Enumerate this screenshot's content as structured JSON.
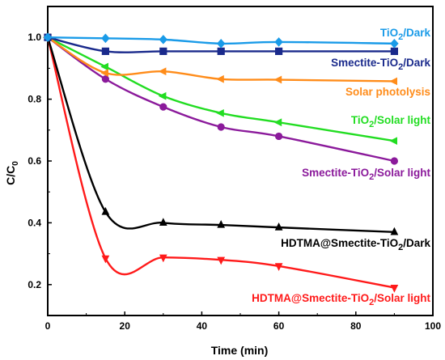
{
  "chart_data": {
    "type": "line",
    "xlabel": "Time (min)",
    "ylabel": {
      "main": "C/C",
      "sub": "0"
    },
    "xlim": [
      0,
      100
    ],
    "ylim": [
      0.1,
      1.1
    ],
    "x_ticks": [
      0,
      20,
      40,
      60,
      80,
      100
    ],
    "y_ticks": [
      0.2,
      0.4,
      0.6,
      0.8,
      1.0
    ],
    "x_tick_labels": [
      "0",
      "20",
      "40",
      "60",
      "80",
      "100"
    ],
    "y_tick_labels": [
      "0.2",
      "0.4",
      "0.6",
      "0.8",
      "1.0"
    ],
    "grid": false,
    "series": [
      {
        "name": "TiO2/Dark",
        "color": "#1a9be8",
        "marker": "diamond",
        "label_parts": [
          {
            "t": "TiO",
            "s": "n"
          },
          {
            "t": "2",
            "s": "sub"
          },
          {
            "t": "/Dark",
            "s": "n"
          }
        ],
        "x": [
          0,
          15,
          30,
          45,
          60,
          90
        ],
        "y": [
          1.0,
          0.997,
          0.993,
          0.98,
          0.985,
          0.98
        ]
      },
      {
        "name": "Smectite-TiO2/Dark",
        "color": "#1a2a8c",
        "marker": "square",
        "label_parts": [
          {
            "t": "Smectite-TiO",
            "s": "n"
          },
          {
            "t": "2",
            "s": "sub"
          },
          {
            "t": "/Dark",
            "s": "n"
          }
        ],
        "x": [
          0,
          15,
          30,
          45,
          60,
          90
        ],
        "y": [
          1.0,
          0.955,
          0.955,
          0.955,
          0.955,
          0.955
        ]
      },
      {
        "name": "Solar photolysis",
        "color": "#ff8c1a",
        "marker": "triangle-left",
        "label_parts": [
          {
            "t": "Solar photolysis",
            "s": "n"
          }
        ],
        "x": [
          0,
          15,
          30,
          45,
          60,
          90
        ],
        "y": [
          1.0,
          0.885,
          0.89,
          0.865,
          0.863,
          0.858
        ]
      },
      {
        "name": "TiO2/Solar light",
        "color": "#22dd22",
        "marker": "triangle-left",
        "label_parts": [
          {
            "t": "TiO",
            "s": "n"
          },
          {
            "t": "2",
            "s": "sub"
          },
          {
            "t": "/Solar light",
            "s": "n"
          }
        ],
        "x": [
          0,
          15,
          30,
          45,
          60,
          90
        ],
        "y": [
          1.0,
          0.905,
          0.81,
          0.755,
          0.725,
          0.665
        ]
      },
      {
        "name": "Smectite-TiO2/Solar light",
        "color": "#8b1a9b",
        "marker": "circle",
        "label_parts": [
          {
            "t": "Smectite-TiO",
            "s": "n"
          },
          {
            "t": "2",
            "s": "sub"
          },
          {
            "t": "/Solar light",
            "s": "n"
          }
        ],
        "x": [
          0,
          15,
          30,
          45,
          60,
          90
        ],
        "y": [
          1.0,
          0.865,
          0.775,
          0.71,
          0.68,
          0.6
        ]
      },
      {
        "name": "HDTMA@Smectite-TiO2/Dark",
        "color": "#000000",
        "marker": "triangle-up",
        "label_parts": [
          {
            "t": "HDTMA@Smectite-TiO",
            "s": "n"
          },
          {
            "t": "2",
            "s": "sub"
          },
          {
            "t": "/Dark",
            "s": "n"
          }
        ],
        "x": [
          0,
          15,
          30,
          45,
          60,
          90
        ],
        "y": [
          1.0,
          0.435,
          0.4,
          0.393,
          0.385,
          0.37
        ]
      },
      {
        "name": "HDTMA@Smectite-TiO2/Solar light",
        "color": "#ff1a1a",
        "marker": "triangle-down",
        "label_parts": [
          {
            "t": "HDTMA@Smectite-TiO",
            "s": "n"
          },
          {
            "t": "2",
            "s": "sub"
          },
          {
            "t": "/Solar light",
            "s": "n"
          }
        ],
        "x": [
          0,
          15,
          30,
          45,
          60,
          90
        ],
        "y": [
          1.0,
          0.285,
          0.288,
          0.28,
          0.26,
          0.19
        ]
      }
    ]
  }
}
